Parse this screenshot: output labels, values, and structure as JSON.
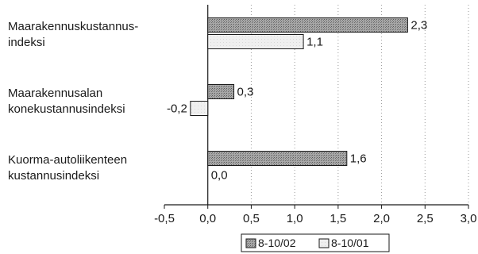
{
  "chart_data": {
    "type": "bar",
    "orientation": "horizontal",
    "categories": [
      [
        "Maarakennuskustannus-",
        "indeksi"
      ],
      [
        "Maarakennusalan",
        "konekustannusindeksi"
      ],
      [
        "Kuorma-autoliikenteen",
        "kustannusindeksi"
      ]
    ],
    "series": [
      {
        "name": "8-10/02",
        "values": [
          2.3,
          0.3,
          1.6
        ],
        "labels": [
          "2,3",
          "0,3",
          "1,6"
        ],
        "color": "#b3b3b3",
        "pattern": "dotted-dark"
      },
      {
        "name": "8-10/01",
        "values": [
          1.1,
          -0.2,
          0.0
        ],
        "labels": [
          "1,1",
          "-0,2",
          "0,0"
        ],
        "color": "#ececec",
        "pattern": "light"
      }
    ],
    "xlim": [
      -0.5,
      3.0
    ],
    "ticks": [
      {
        "value": -0.5,
        "label": "-0,5"
      },
      {
        "value": 0.0,
        "label": "0,0"
      },
      {
        "value": 0.5,
        "label": "0,5"
      },
      {
        "value": 1.0,
        "label": "1,0"
      },
      {
        "value": 1.5,
        "label": "1,5"
      },
      {
        "value": 2.0,
        "label": "2,0"
      },
      {
        "value": 2.5,
        "label": "2,5"
      },
      {
        "value": 3.0,
        "label": "3,0"
      }
    ],
    "grid": "vertical dotted",
    "legend_position": "bottom",
    "title": "",
    "xlabel": "",
    "ylabel": ""
  }
}
